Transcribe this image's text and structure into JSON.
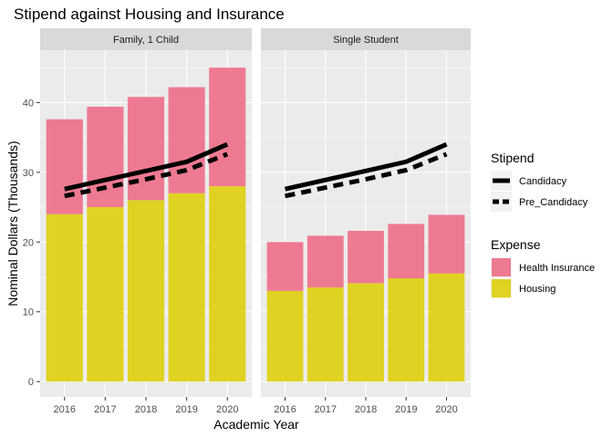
{
  "chart_data": {
    "type": "bar",
    "title": "Stipend against Housing and Insurance",
    "xlabel": "Academic Year",
    "ylabel": "Nominal Dollars (Thousands)",
    "ylim": [
      -2.2,
      47.5
    ],
    "y_ticks": [
      0,
      10,
      20,
      30,
      40
    ],
    "grid": true,
    "categories": [
      "2016",
      "2017",
      "2018",
      "2019",
      "2020"
    ],
    "bar_series": [
      {
        "name": "Housing",
        "color": "#E0D222"
      },
      {
        "name": "Health Insurance",
        "color": "#EE7A92"
      }
    ],
    "line_series": [
      {
        "name": "Candidacy",
        "values": [
          27.6,
          28.9,
          30.2,
          31.5,
          34.0
        ],
        "color": "#000000",
        "linetype": "solid"
      },
      {
        "name": "Pre_Candidacy",
        "values": [
          26.6,
          27.8,
          29.0,
          30.3,
          32.6
        ],
        "color": "#000000",
        "linetype": "dashed"
      }
    ],
    "panels": [
      {
        "label": "Family, 1 Child",
        "housing": [
          24.0,
          25.0,
          26.0,
          27.0,
          28.0
        ],
        "health_insurance": [
          13.6,
          14.4,
          14.8,
          15.2,
          17.0
        ],
        "totals": [
          37.6,
          39.4,
          40.8,
          42.2,
          45.0
        ]
      },
      {
        "label": "Single Student",
        "housing": [
          13.0,
          13.5,
          14.1,
          14.8,
          15.5
        ],
        "health_insurance": [
          7.0,
          7.4,
          7.5,
          7.8,
          8.4
        ],
        "totals": [
          20.0,
          20.9,
          21.6,
          22.6,
          23.9
        ]
      }
    ],
    "legends": [
      {
        "title": "Stipend",
        "entries": [
          "Candidacy",
          "Pre_Candidacy"
        ]
      },
      {
        "title": "Expense",
        "entries": [
          "Health Insurance",
          "Housing"
        ]
      }
    ],
    "legend_position": "right",
    "panel_background": "#EBEBEB",
    "strip_background": "#D9D9D9"
  }
}
